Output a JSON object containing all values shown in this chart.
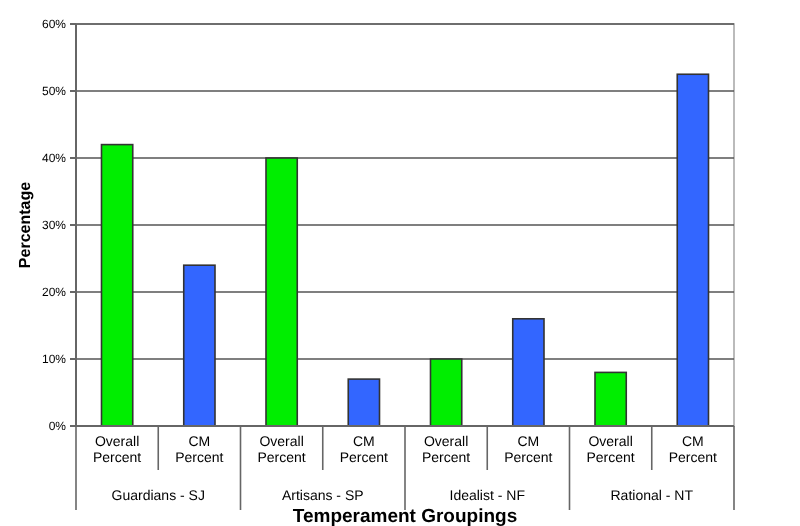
{
  "chart_data": {
    "type": "bar",
    "xlabel": "Temperament Groupings",
    "ylabel": "Percentage",
    "categories": [
      "Overall Percent",
      "CM Percent",
      "Overall Percent",
      "CM Percent",
      "Overall Percent",
      "CM Percent",
      "Overall Percent",
      "CM Percent"
    ],
    "values": [
      42,
      24,
      40,
      7,
      10,
      16,
      8,
      52.5
    ],
    "colors": [
      "#00ee00",
      "#3366ff",
      "#00ee00",
      "#3366ff",
      "#00ee00",
      "#3366ff",
      "#00ee00",
      "#3366ff"
    ],
    "ylim": [
      0,
      60
    ],
    "yticks": [
      {
        "value": 0,
        "label": "0%"
      },
      {
        "value": 10,
        "label": "10%"
      },
      {
        "value": 20,
        "label": "20%"
      },
      {
        "value": 30,
        "label": "30%"
      },
      {
        "value": 40,
        "label": "40%"
      },
      {
        "value": 50,
        "label": "50%"
      },
      {
        "value": 60,
        "label": "60%"
      }
    ],
    "grid": "y",
    "annotations": [
      "Guardians - SJ",
      "Artisans - SP",
      "Idealist - NF",
      "Rational - NT"
    ]
  }
}
